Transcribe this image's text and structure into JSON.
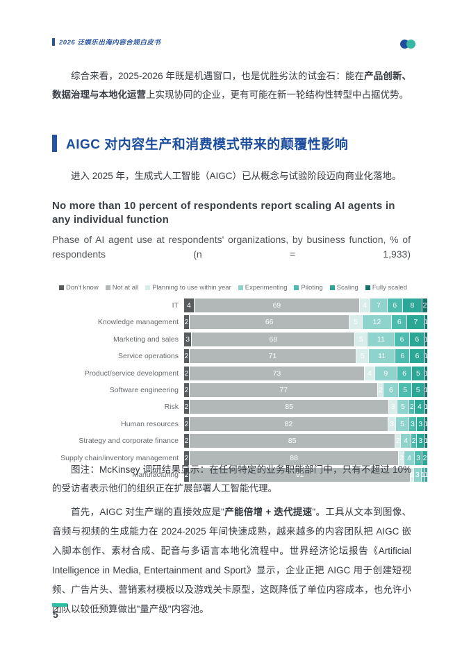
{
  "header": {
    "doc_title": "2026 泛娱乐出海内容合规白皮书",
    "logo_colors": {
      "left": "#1e4e9d",
      "right": "#35b9a3"
    }
  },
  "intro_paragraph": {
    "runs": [
      {
        "text": "综合来看，2025-2026 年既是机遇窗口，也是优胜劣汰的试金石：能在",
        "bold": false
      },
      {
        "text": "产品创新、数据治理与本地化运营",
        "bold": true
      },
      {
        "text": "上实现协同的企业，更有可能在新一轮结构性转型中占据优势。",
        "bold": false
      }
    ]
  },
  "section": {
    "title": "AIGC 对内容生产和消费模式带来的颠覆性影响"
  },
  "lead_paragraph": {
    "text": "进入 2025 年，生成式人工智能（AIGC）已从概念与试验阶段迈向商业化落地。"
  },
  "chart_data": {
    "type": "bar",
    "orientation": "horizontal-stacked",
    "title": "No more than 10 percent of respondents report scaling AI agents in any individual function",
    "subtitle": "Phase of AI agent use at respondents' organizations, by business function, % of respondents (n = 1,933)",
    "unit": "% of respondents",
    "xlim": [
      0,
      100
    ],
    "grid": false,
    "legend_position": "top",
    "legend": [
      {
        "label": "Don't know",
        "color": "#595c5e"
      },
      {
        "label": "Not at all",
        "color": "#b2b7b7"
      },
      {
        "label": "Planning to use within year",
        "color": "#d9edea"
      },
      {
        "label": "Experimenting",
        "color": "#8fd4cc"
      },
      {
        "label": "Piloting",
        "color": "#4cbcae"
      },
      {
        "label": "Scaling",
        "color": "#2aa795"
      },
      {
        "label": "Fully scaled",
        "color": "#11756a"
      }
    ],
    "categories": [
      "IT",
      "Knowledge management",
      "Marketing and sales",
      "Service operations",
      "Product/service development",
      "Software engineering",
      "Risk",
      "Human resources",
      "Strategy and corporate finance",
      "Supply chain/inventory management",
      "Manufacturing"
    ],
    "rows": [
      {
        "label": "IT",
        "values": [
          4,
          69,
          4,
          7,
          6,
          8,
          2
        ]
      },
      {
        "label": "Knowledge management",
        "values": [
          2,
          66,
          5,
          12,
          6,
          7,
          1
        ]
      },
      {
        "label": "Marketing and sales",
        "values": [
          3,
          68,
          5,
          11,
          6,
          6,
          1
        ]
      },
      {
        "label": "Service operations",
        "values": [
          2,
          71,
          5,
          11,
          6,
          6,
          1
        ]
      },
      {
        "label": "Product/service development",
        "values": [
          2,
          73,
          4,
          9,
          6,
          5,
          1
        ]
      },
      {
        "label": "Software engineering",
        "values": [
          2,
          77,
          2,
          6,
          5,
          5,
          1
        ]
      },
      {
        "label": "Risk",
        "values": [
          2,
          85,
          3,
          5,
          2,
          4,
          1
        ]
      },
      {
        "label": "Human resources",
        "values": [
          2,
          82,
          3,
          5,
          3,
          3,
          1
        ]
      },
      {
        "label": "Strategy and corporate finance",
        "values": [
          2,
          85,
          2,
          4,
          2,
          3,
          1
        ]
      },
      {
        "label": "Supply chain/inventory management",
        "values": [
          2,
          88,
          2,
          4,
          3,
          2,
          0
        ]
      },
      {
        "label": "Manufacturing",
        "values": [
          2,
          91,
          1,
          3,
          1,
          1,
          0
        ]
      }
    ]
  },
  "chart_caption": {
    "runs": [
      {
        "text": "图注：McKinsey 调研结果显示：在任何特定的业务职能部门中，只有不超过 10% 的受访者表示他们的组织正在扩展部署人工智能代理。",
        "bold": false
      }
    ]
  },
  "body_paragraph": {
    "runs": [
      {
        "text": "首先，AIGC 对生产端的直接效应是\"",
        "bold": false
      },
      {
        "text": "产能倍增 + 迭代提速",
        "bold": true
      },
      {
        "text": "\"。工具从文本到图像、音频与视频的生成能力在 2024-2025 年间快速成熟，越来越多的内容团队把 AIGC 嵌入脚本创作、素材合成、配音与多语言本地化流程中。世界经济论坛报告《Artificial Intelligence in Media, Entertainment and Sport》显示，企业正把 AIGC 用于创建短视频、广告片头、营销素材模板以及游戏关卡原型，这既降低了单位内容成本，也允许小团队以较低预算做出\"量产级\"内容池。",
        "bold": false
      }
    ]
  },
  "footer": {
    "page_number": "5"
  },
  "theme": {
    "accent_blue": "#2155a3",
    "heading_blue": "#1b4da0",
    "teal": "#2bc0a6",
    "body_text": "#363b42"
  }
}
